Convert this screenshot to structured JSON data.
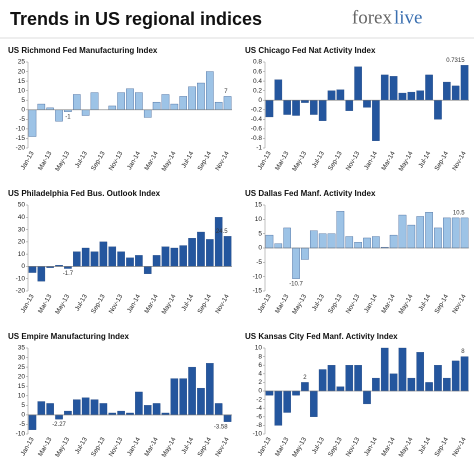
{
  "header": {
    "title": "Trends in US regional indices",
    "logo_a": "forex",
    "logo_b": "live"
  },
  "chart_data": [
    {
      "type": "bar",
      "title": "US Richmond Fed Manufacturing Index",
      "categories": [
        "Jan-13",
        null,
        "Mar-13",
        null,
        "May-13",
        null,
        "Jul-13",
        null,
        "Sep-13",
        null,
        "Nov-13",
        null,
        "Jan-14",
        null,
        "Mar-14",
        null,
        "May-14",
        null,
        "Jul-14",
        null,
        "Sep-14",
        null,
        "Nov-14"
      ],
      "values": [
        -14,
        3,
        1,
        -6,
        -1,
        8,
        -3,
        9,
        0,
        2,
        9,
        11,
        9,
        -4,
        4,
        8,
        3,
        7,
        12,
        14,
        20,
        4,
        7
      ],
      "value_labels": [
        null,
        null,
        null,
        null,
        "-1",
        null,
        null,
        null,
        null,
        null,
        null,
        null,
        null,
        null,
        null,
        null,
        null,
        null,
        null,
        null,
        null,
        null,
        "7"
      ],
      "color": "#9dc3e6",
      "ylim": [
        -20,
        25
      ],
      "yticks": [
        -20,
        -15,
        -10,
        -5,
        0,
        5,
        10,
        15,
        20,
        25
      ]
    },
    {
      "type": "bar",
      "title": "US Chicago Fed Nat Activity Index",
      "categories": [
        "Jan-13",
        null,
        "Mar-13",
        null,
        "May-13",
        null,
        "Jul-13",
        null,
        "Sep-13",
        null,
        "Nov-13",
        null,
        "Jan-14",
        null,
        "Mar-14",
        null,
        "May-14",
        null,
        "Jul-14",
        null,
        "Sep-14",
        null,
        "Nov-14"
      ],
      "values": [
        -0.35,
        0.43,
        -0.3,
        -0.32,
        -0.05,
        -0.3,
        -0.43,
        0.2,
        0.22,
        -0.22,
        0.7,
        -0.15,
        -0.85,
        0.53,
        0.5,
        0.15,
        0.17,
        0.2,
        0.53,
        -0.4,
        0.38,
        0.3,
        0.7315
      ],
      "value_labels": [
        null,
        null,
        null,
        null,
        null,
        null,
        null,
        null,
        null,
        null,
        null,
        null,
        null,
        null,
        null,
        null,
        null,
        null,
        null,
        null,
        null,
        null,
        "0.7315"
      ],
      "color": "#24569e",
      "ylim": [
        -1,
        0.8
      ],
      "yticks": [
        -1,
        -0.8,
        -0.6,
        -0.4,
        -0.2,
        0,
        0.2,
        0.4,
        0.6,
        0.8
      ]
    },
    {
      "type": "bar",
      "title": "US Philadelphia Fed Bus. Outlook Index",
      "categories": [
        "Jan-13",
        null,
        "Mar-13",
        null,
        "May-13",
        null,
        "Jul-13",
        null,
        "Sep-13",
        null,
        "Nov-13",
        null,
        "Jan-14",
        null,
        "Mar-14",
        null,
        "May-14",
        null,
        "Jul-14",
        null,
        "Sep-14",
        null,
        "Nov-14"
      ],
      "values": [
        -5,
        -12,
        -1,
        1,
        -1.7,
        12,
        15,
        12,
        20,
        16,
        12,
        7,
        9,
        -6,
        9,
        16,
        15,
        17,
        23,
        28,
        22,
        40,
        24.5
      ],
      "value_labels": [
        null,
        null,
        null,
        null,
        "-1.7",
        null,
        null,
        null,
        null,
        null,
        null,
        null,
        null,
        null,
        null,
        null,
        null,
        null,
        null,
        null,
        null,
        null,
        "24.5"
      ],
      "color": "#24569e",
      "ylim": [
        -20,
        50
      ],
      "yticks": [
        -20,
        -10,
        0,
        10,
        20,
        30,
        40,
        50
      ]
    },
    {
      "type": "bar",
      "title": "US Dallas Fed Manf. Activity Index",
      "categories": [
        "Jan-13",
        null,
        "Mar-13",
        null,
        "May-13",
        null,
        "Jul-13",
        null,
        "Sep-13",
        null,
        "Nov-13",
        null,
        "Jan-14",
        null,
        "Mar-14",
        null,
        "May-14",
        null,
        "Jul-14",
        null,
        "Sep-14",
        null,
        "Nov-14"
      ],
      "values": [
        4.5,
        1.5,
        7,
        -10.7,
        -4,
        6,
        5,
        5,
        12.8,
        4,
        2,
        3.5,
        4,
        0.3,
        4.5,
        11.5,
        8,
        11,
        12.5,
        7,
        10.5,
        10.5,
        10.5
      ],
      "value_labels": [
        null,
        null,
        null,
        "-10.7",
        null,
        null,
        null,
        null,
        null,
        null,
        null,
        null,
        null,
        null,
        null,
        null,
        null,
        null,
        null,
        null,
        null,
        null,
        "10.5"
      ],
      "color": "#9dc3e6",
      "ylim": [
        -15,
        15
      ],
      "yticks": [
        -15,
        -10,
        -5,
        0,
        5,
        10,
        15
      ]
    },
    {
      "type": "bar",
      "title": "US Empire Manufacturing Index",
      "categories": [
        "Jan-13",
        null,
        "Mar-13",
        null,
        "May-13",
        null,
        "Jul-13",
        null,
        "Sep-13",
        null,
        "Nov-13",
        null,
        "Jan-14",
        null,
        "Mar-14",
        null,
        "May-14",
        null,
        "Jul-14",
        null,
        "Sep-14",
        null,
        "Nov-14"
      ],
      "values": [
        -7.8,
        7,
        6,
        -2.27,
        2,
        8,
        9,
        8,
        6,
        1,
        2,
        1,
        12,
        5,
        6,
        1,
        19,
        19,
        25,
        14,
        27,
        6,
        -3.58
      ],
      "value_labels": [
        null,
        null,
        null,
        "-2.27",
        null,
        null,
        null,
        null,
        null,
        null,
        null,
        null,
        null,
        null,
        null,
        null,
        null,
        null,
        null,
        null,
        null,
        null,
        "-3.58"
      ],
      "color": "#24569e",
      "ylim": [
        -10,
        35
      ],
      "yticks": [
        -10,
        -5,
        0,
        5,
        10,
        15,
        20,
        25,
        30,
        35
      ]
    },
    {
      "type": "bar",
      "title": "US Kansas City Fed Manf. Activity Index",
      "categories": [
        "Jan-13",
        null,
        "Mar-13",
        null,
        "May-13",
        null,
        "Jul-13",
        null,
        "Sep-13",
        null,
        "Nov-13",
        null,
        "Jan-14",
        null,
        "Mar-14",
        null,
        "May-14",
        null,
        "Jul-14",
        null,
        "Sep-14",
        null,
        "Nov-14"
      ],
      "values": [
        -1,
        -8,
        -5,
        -1,
        2,
        -6,
        5,
        6,
        1,
        6,
        6,
        -3,
        3,
        10,
        4,
        10,
        3,
        9,
        2,
        6,
        3,
        7,
        8
      ],
      "value_labels": [
        null,
        null,
        null,
        null,
        "2",
        null,
        null,
        null,
        null,
        null,
        null,
        null,
        null,
        null,
        null,
        null,
        null,
        null,
        null,
        null,
        null,
        null,
        "8"
      ],
      "color": "#24569e",
      "ylim": [
        -10,
        10
      ],
      "yticks": [
        -10,
        -8,
        -6,
        -4,
        -2,
        0,
        2,
        4,
        6,
        8,
        10
      ]
    }
  ]
}
